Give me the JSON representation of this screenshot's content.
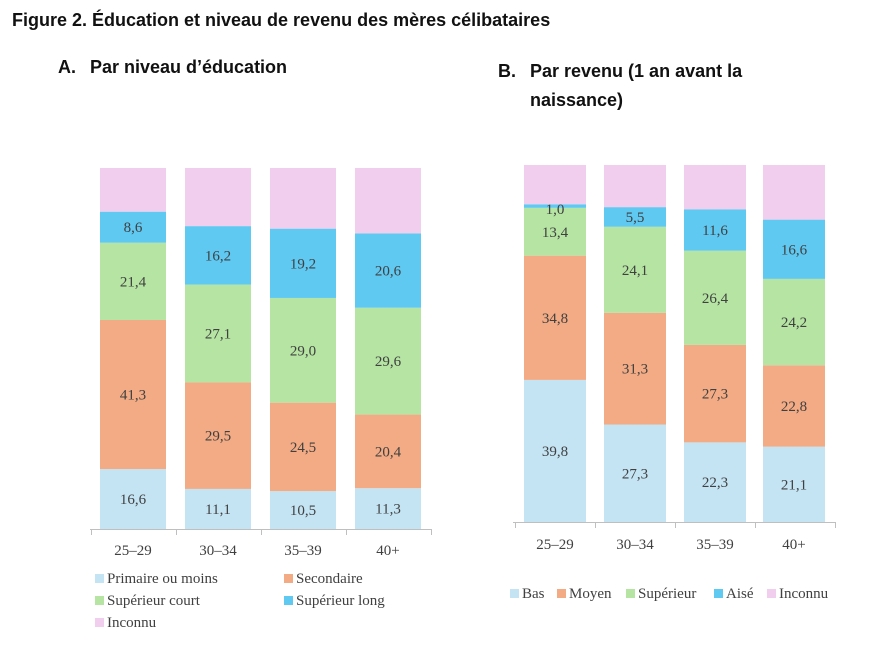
{
  "figure_title": "Figure 2. Éducation et niveau de revenu des mères célibataires",
  "colors": {
    "c1": "#c4e4f4",
    "c2": "#f2ab84",
    "c3": "#b5e4a3",
    "c4": "#5fc9f2",
    "c5": "#f2ceee",
    "axis": "#bfbfbf",
    "label": "#404040"
  },
  "chart_data": [
    {
      "type": "bar",
      "stacked": true,
      "panel_letter": "A.",
      "title": "Par niveau d’éducation",
      "categories": [
        "25–29",
        "30–34",
        "35–39",
        "40+"
      ],
      "ylim": [
        0,
        100
      ],
      "legend_position": "bottom",
      "series": [
        {
          "name": "Primaire ou moins",
          "values": [
            16.6,
            11.1,
            10.5,
            11.3
          ],
          "labels": [
            "16,6",
            "11,1",
            "10,5",
            "11,3"
          ],
          "color": "#c4e4f4"
        },
        {
          "name": "Secondaire",
          "values": [
            41.3,
            29.5,
            24.5,
            20.4
          ],
          "labels": [
            "41,3",
            "29,5",
            "24,5",
            "20,4"
          ],
          "color": "#f2ab84"
        },
        {
          "name": "Supérieur court",
          "values": [
            21.4,
            27.1,
            29.0,
            29.6
          ],
          "labels": [
            "21,4",
            "27,1",
            "29,0",
            "29,6"
          ],
          "color": "#b5e4a3"
        },
        {
          "name": "Supérieur long",
          "values": [
            8.6,
            16.2,
            19.2,
            20.6
          ],
          "labels": [
            "8,6",
            "16,2",
            "19,2",
            "20,6"
          ],
          "color": "#5fc9f2"
        },
        {
          "name": "Inconnu",
          "values": [
            12.1,
            16.1,
            16.8,
            18.1
          ],
          "labels": [
            "",
            "",
            "",
            ""
          ],
          "color": "#f2ceee"
        }
      ]
    },
    {
      "type": "bar",
      "stacked": true,
      "panel_letter": "B.",
      "title": "Par revenu (1 an avant la naissance)",
      "categories": [
        "25–29",
        "30–34",
        "35–39",
        "40+"
      ],
      "ylim": [
        0,
        100
      ],
      "legend_position": "bottom",
      "series": [
        {
          "name": "Bas",
          "values": [
            39.8,
            27.3,
            22.3,
            21.1
          ],
          "labels": [
            "39,8",
            "27,3",
            "22,3",
            "21,1"
          ],
          "color": "#c4e4f4"
        },
        {
          "name": "Moyen",
          "values": [
            34.8,
            31.3,
            27.3,
            22.8
          ],
          "labels": [
            "34,8",
            "31,3",
            "27,3",
            "22,8"
          ],
          "color": "#f2ab84"
        },
        {
          "name": "Supérieur",
          "values": [
            13.4,
            24.1,
            26.4,
            24.2
          ],
          "labels": [
            "13,4",
            "24,1",
            "26,4",
            "24,2"
          ],
          "color": "#b5e4a3"
        },
        {
          "name": "Aisé",
          "values": [
            1.0,
            5.5,
            11.6,
            16.6
          ],
          "labels": [
            "1,0",
            "5,5",
            "11,6",
            "16,6"
          ],
          "color": "#5fc9f2"
        },
        {
          "name": "Inconnu",
          "values": [
            11.0,
            11.8,
            12.4,
            15.3
          ],
          "labels": [
            "",
            "",
            "",
            ""
          ],
          "color": "#f2ceee"
        }
      ]
    }
  ]
}
